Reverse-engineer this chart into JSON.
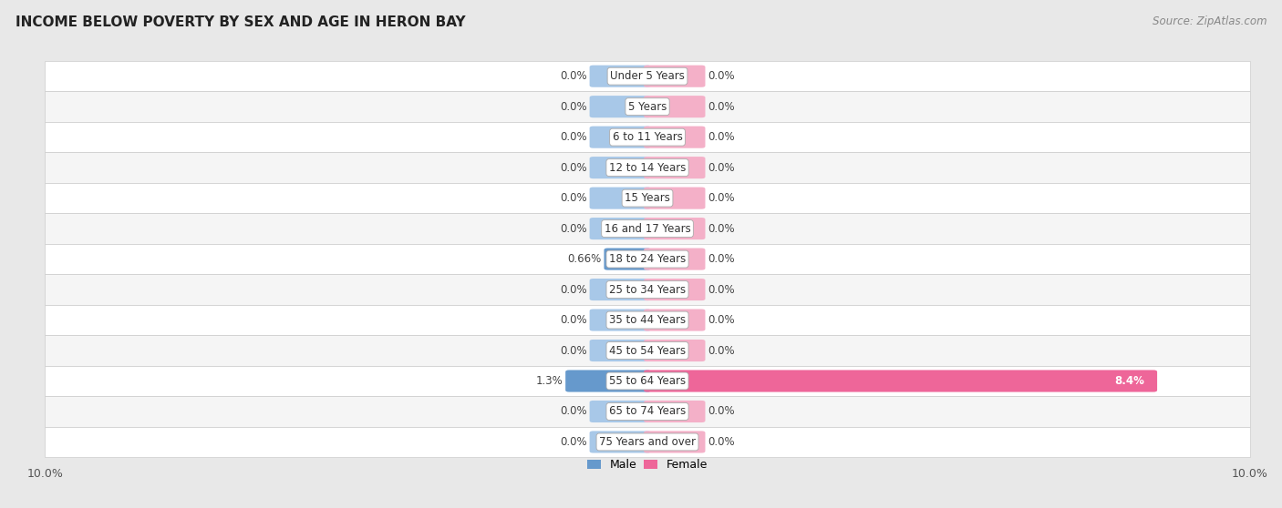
{
  "title": "INCOME BELOW POVERTY BY SEX AND AGE IN HERON BAY",
  "source": "Source: ZipAtlas.com",
  "categories": [
    "Under 5 Years",
    "5 Years",
    "6 to 11 Years",
    "12 to 14 Years",
    "15 Years",
    "16 and 17 Years",
    "18 to 24 Years",
    "25 to 34 Years",
    "35 to 44 Years",
    "45 to 54 Years",
    "55 to 64 Years",
    "65 to 74 Years",
    "75 Years and over"
  ],
  "male_values": [
    0.0,
    0.0,
    0.0,
    0.0,
    0.0,
    0.0,
    0.66,
    0.0,
    0.0,
    0.0,
    1.3,
    0.0,
    0.0
  ],
  "female_values": [
    0.0,
    0.0,
    0.0,
    0.0,
    0.0,
    0.0,
    0.0,
    0.0,
    0.0,
    0.0,
    8.4,
    0.0,
    0.0
  ],
  "male_labels": [
    "0.0%",
    "0.0%",
    "0.0%",
    "0.0%",
    "0.0%",
    "0.0%",
    "0.66%",
    "0.0%",
    "0.0%",
    "0.0%",
    "1.3%",
    "0.0%",
    "0.0%"
  ],
  "female_labels": [
    "0.0%",
    "0.0%",
    "0.0%",
    "0.0%",
    "0.0%",
    "0.0%",
    "0.0%",
    "0.0%",
    "0.0%",
    "0.0%",
    "8.4%",
    "0.0%",
    "0.0%"
  ],
  "male_color": "#a8c8e8",
  "female_color": "#f4b0c8",
  "male_color_solid": "#6699cc",
  "female_color_solid": "#ee6699",
  "default_bar_width": 1.8,
  "xlim": 10.0,
  "bg_color": "#e8e8e8",
  "row_bg_light": "#f5f5f5",
  "row_bg_white": "#ffffff",
  "title_fontsize": 11,
  "label_fontsize": 8.5,
  "source_fontsize": 8.5,
  "legend_fontsize": 9,
  "axis_label_fontsize": 9
}
